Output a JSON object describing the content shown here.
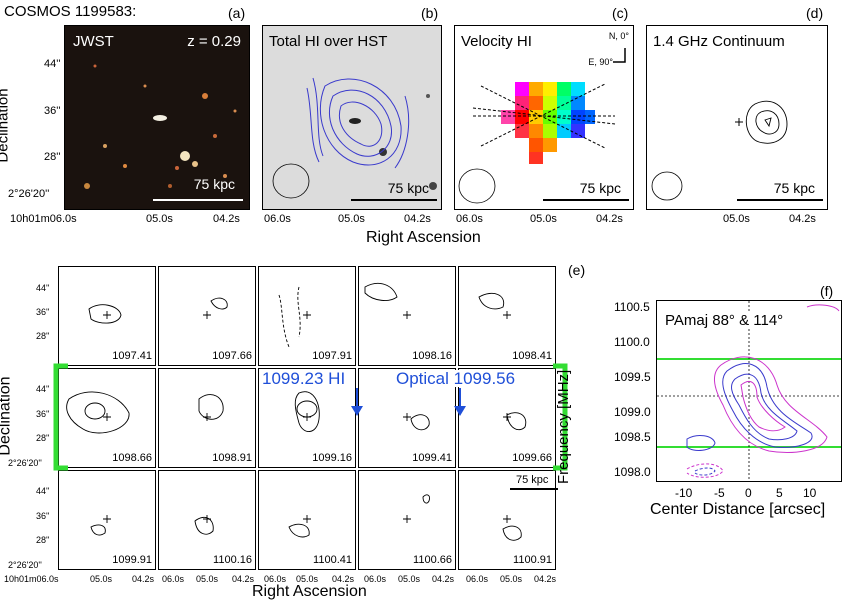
{
  "source_label": "COSMOS 1199583:",
  "top_panels": [
    {
      "letter": "(a)",
      "title": "JWST",
      "note": "z = 0.29",
      "scale": "75 kpc"
    },
    {
      "letter": "(b)",
      "title": "Total HI over HST",
      "scale": "75 kpc"
    },
    {
      "letter": "(c)",
      "title": "Velocity HI",
      "compass_n": "N, 0°",
      "compass_e": "E, 90°",
      "scale": "75 kpc"
    },
    {
      "letter": "(d)",
      "title": "1.4 GHz Continuum",
      "scale": "75 kpc"
    }
  ],
  "axes_top": {
    "ylabel": "Declination",
    "xlabel": "Right Ascension",
    "yticks": [
      "44''",
      "36''",
      "28''",
      "2°26'20''"
    ],
    "xticks_a": [
      "10h01m06.0s",
      "05.0s",
      "04.2s"
    ],
    "xticks": [
      "06.0s",
      "05.0s",
      "04.2s"
    ]
  },
  "grid": {
    "letter": "(e)",
    "ylabel": "Declination",
    "xlabel": "Right Ascension",
    "yticks": [
      "44''",
      "36''",
      "28''",
      "2°26'20''"
    ],
    "xticks_first": [
      "10h01m06.0s",
      "05.0s",
      "04.2s"
    ],
    "xticks": [
      "06.0s",
      "05.0s",
      "04.2s"
    ],
    "scale": "75 kpc",
    "annot_hi": "1099.23 HI",
    "annot_opt": "Optical 1099.56",
    "channels": [
      "1097.41",
      "1097.66",
      "1097.91",
      "1098.16",
      "1098.41",
      "1098.66",
      "1098.91",
      "1099.16",
      "1099.41",
      "1099.66",
      "1099.91",
      "1100.16",
      "1100.41",
      "1100.66",
      "1100.91"
    ]
  },
  "pv": {
    "letter": "(f)",
    "title": "PAmaj 88° & 114°",
    "ylabel": "Frequency [MHz]",
    "xlabel": "Center Distance [arcsec]",
    "yticks": [
      "1100.5",
      "1100.0",
      "1099.5",
      "1099.0",
      "1098.5",
      "1098.0"
    ],
    "xticks": [
      "-10",
      "-5",
      "0",
      "5",
      "10"
    ]
  },
  "colors": {
    "contour_blue": "#3a3acc",
    "marker_blue": "#1f4fd8",
    "green": "#33dd33",
    "magenta": "#cc33cc"
  }
}
